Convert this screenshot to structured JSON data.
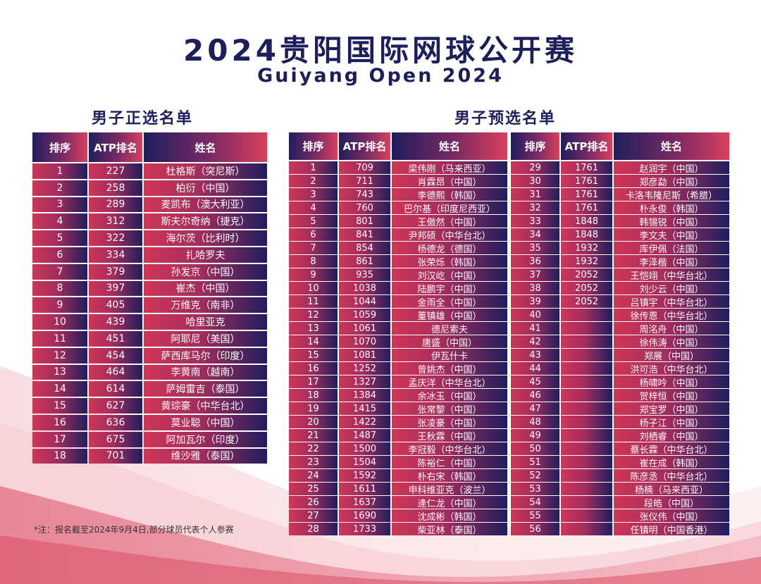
{
  "colors": {
    "navy": "#1d1f5c",
    "crimson": "#cf3657"
  },
  "title_cn": "2024贵阳国际网球公开赛",
  "title_en": "Guiyang Open 2024",
  "main_draw": {
    "title": "男子正选名单",
    "headers": [
      "排序",
      "ATP排名",
      "姓名"
    ],
    "rows": [
      [
        "1",
        "227",
        "杜格斯（突尼斯）"
      ],
      [
        "2",
        "258",
        "柏衍（中国）"
      ],
      [
        "3",
        "289",
        "麦凯布（澳大利亚）"
      ],
      [
        "4",
        "312",
        "斯夫尔奇纳（捷克）"
      ],
      [
        "5",
        "322",
        "海尔茨（比利时）"
      ],
      [
        "6",
        "334",
        "扎哈罗夫"
      ],
      [
        "7",
        "379",
        "孙发京（中国）"
      ],
      [
        "8",
        "397",
        "崔杰（中国）"
      ],
      [
        "9",
        "405",
        "万维克（南非）"
      ],
      [
        "10",
        "439",
        "哈里亚克"
      ],
      [
        "11",
        "451",
        "阿耶尼（美国）"
      ],
      [
        "12",
        "454",
        "萨西库马尔（印度）"
      ],
      [
        "13",
        "464",
        "李黄南（越南）"
      ],
      [
        "14",
        "614",
        "萨姆雷吉（泰国）"
      ],
      [
        "15",
        "627",
        "黄琮豪（中华台北）"
      ],
      [
        "16",
        "636",
        "莫业聪（中国）"
      ],
      [
        "17",
        "675",
        "阿加瓦尔（印度）"
      ],
      [
        "18",
        "701",
        "维沙雅（泰国）"
      ]
    ]
  },
  "qualifying": {
    "title": "男子预选名单",
    "headers": [
      "排序",
      "ATP排名",
      "姓名"
    ],
    "left_rows": [
      [
        "1",
        "709",
        "梁伟刚（马来西亚）"
      ],
      [
        "2",
        "711",
        "肖霖昂（中国）"
      ],
      [
        "3",
        "743",
        "李德熙（韩国）"
      ],
      [
        "4",
        "760",
        "巴尔基（印度尼西亚）"
      ],
      [
        "5",
        "801",
        "王傲然（中国）"
      ],
      [
        "6",
        "841",
        "尹邦硕（中华台北）"
      ],
      [
        "7",
        "854",
        "杨德龙（德国）"
      ],
      [
        "8",
        "861",
        "张荣烁（韩国）"
      ],
      [
        "9",
        "935",
        "刘汉屹（中国）"
      ],
      [
        "10",
        "1038",
        "陆鹏宇（中国）"
      ],
      [
        "11",
        "1044",
        "金雨全（中国）"
      ],
      [
        "12",
        "1059",
        "董镇雄（中国）"
      ],
      [
        "13",
        "1061",
        "德尼索夫"
      ],
      [
        "14",
        "1070",
        "唐盛（中国）"
      ],
      [
        "15",
        "1081",
        "伊瓦什卡"
      ],
      [
        "16",
        "1252",
        "曾姚杰（中国）"
      ],
      [
        "17",
        "1327",
        "孟庆洋（中华台北）"
      ],
      [
        "18",
        "1384",
        "余冰玉（中国）"
      ],
      [
        "19",
        "1415",
        "张常黎（中国）"
      ],
      [
        "20",
        "1422",
        "张凌豪（中国）"
      ],
      [
        "21",
        "1487",
        "王秋霖（中国）"
      ],
      [
        "22",
        "1500",
        "李冠毅（中华台北）"
      ],
      [
        "23",
        "1504",
        "陈裕仁（中国）"
      ],
      [
        "24",
        "1592",
        "朴右宋（韩国）"
      ],
      [
        "25",
        "1611",
        "申科维亚克（波兰）"
      ],
      [
        "26",
        "1637",
        "逄仁龙（中国）"
      ],
      [
        "27",
        "1690",
        "沈成彬（韩国）"
      ],
      [
        "28",
        "1733",
        "柴亚林（泰国）"
      ]
    ],
    "right_rows": [
      [
        "29",
        "1761",
        "赵润宇（中国）"
      ],
      [
        "30",
        "1761",
        "郑彦勐（中国）"
      ],
      [
        "31",
        "1761",
        "卡洛韦隆尼斯（希腊）"
      ],
      [
        "32",
        "1761",
        "朴永俊（韩国）"
      ],
      [
        "33",
        "1848",
        "韩锡锐（中国）"
      ],
      [
        "34",
        "1848",
        "李文夫（中国）"
      ],
      [
        "35",
        "1932",
        "库伊佩（法国）"
      ],
      [
        "36",
        "1932",
        "李泽楷（中国）"
      ],
      [
        "37",
        "2052",
        "王恺翊（中华台北）"
      ],
      [
        "38",
        "2052",
        "刘少云（中国）"
      ],
      [
        "39",
        "2052",
        "吕镇宇（中华台北）"
      ],
      [
        "40",
        "",
        "徐传恩（中华台北）"
      ],
      [
        "41",
        "",
        "周洺舟（中国）"
      ],
      [
        "42",
        "",
        "徐伟涛（中国）"
      ],
      [
        "43",
        "",
        "郑展（中国）"
      ],
      [
        "44",
        "",
        "洪可浩（中华台北）"
      ],
      [
        "45",
        "",
        "杨啸吟（中国）"
      ],
      [
        "46",
        "",
        "贺梓恒（中国）"
      ],
      [
        "47",
        "",
        "郑宝罗（中国）"
      ],
      [
        "48",
        "",
        "杨子江（中国）"
      ],
      [
        "49",
        "",
        "刘栖睿（中国）"
      ],
      [
        "50",
        "",
        "蔡长霖（中华台北）"
      ],
      [
        "51",
        "",
        "崔在成（韩国）"
      ],
      [
        "52",
        "",
        "陈彦丞（中华台北）"
      ],
      [
        "53",
        "",
        "杨楠（马来西亚）"
      ],
      [
        "54",
        "",
        "段皓（中国）"
      ],
      [
        "55",
        "",
        "张仪伟（中国）"
      ],
      [
        "56",
        "",
        "任镇明（中国香港）"
      ]
    ]
  },
  "footnote": "*注：报名截至2024年9月4日,部分球员代表个人参赛"
}
